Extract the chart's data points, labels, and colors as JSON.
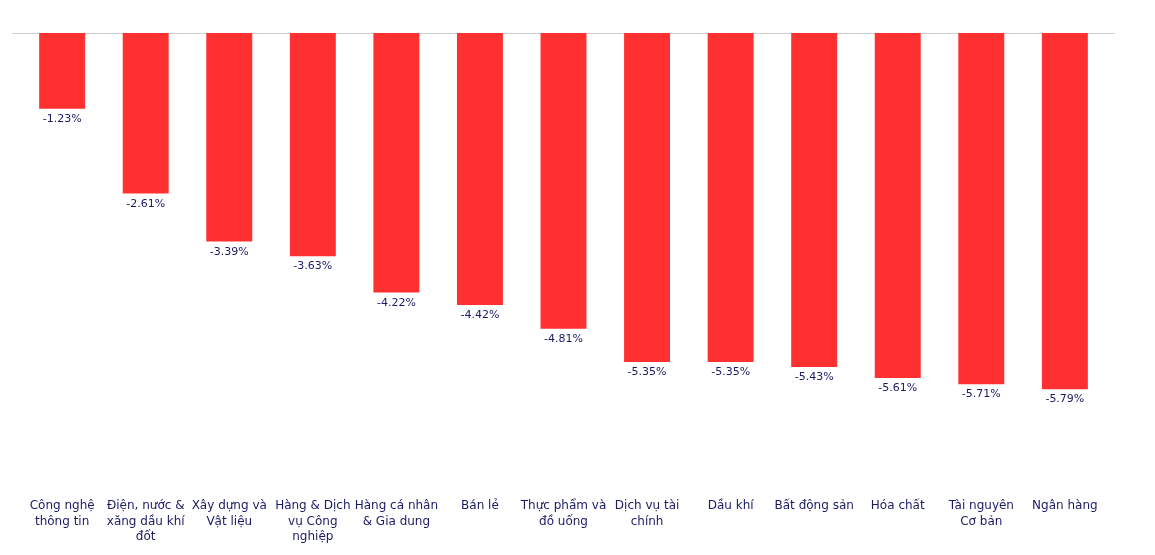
{
  "chart_data": {
    "type": "bar",
    "categories": [
      "Công nghệ thông tin",
      "Điện, nước & xăng dầu khí đốt",
      "Xây dựng và Vật liệu",
      "Hàng & Dịch vụ Công nghiệp",
      "Hàng cá nhân & Gia dung",
      "Bán lẻ",
      "Thực phẩm và đồ uống",
      "Dịch vụ tài chính",
      "Dầu khí",
      "Bất động sản",
      "Hóa chất",
      "Tài nguyên Cơ bản",
      "Ngân hàng"
    ],
    "values": [
      -1.23,
      -2.61,
      -3.39,
      -3.63,
      -4.22,
      -4.42,
      -4.81,
      -5.35,
      -5.35,
      -5.43,
      -5.61,
      -5.71,
      -5.79
    ],
    "value_labels": [
      "-1.23%",
      "-2.61%",
      "-3.39%",
      "-3.63%",
      "-4.22%",
      "-4.42%",
      "-4.81%",
      "-5.35%",
      "-5.35%",
      "-5.43%",
      "-5.61%",
      "-5.71%",
      "-5.79%"
    ],
    "color": "#ff3030",
    "tick_labels": "x"
  }
}
